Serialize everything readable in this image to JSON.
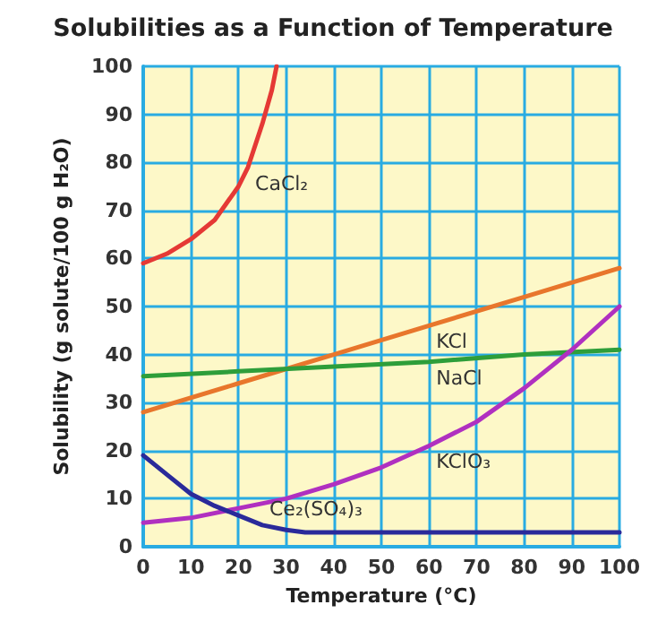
{
  "chart_data": {
    "type": "line",
    "title": "Solubilities as a Function of Temperature",
    "xlabel": "Temperature (°C)",
    "ylabel": "Solubility (g solute/100 g H₂O)",
    "xlim": [
      0,
      100
    ],
    "xticks": [
      0,
      10,
      20,
      30,
      40,
      50,
      60,
      70,
      80,
      90,
      100
    ],
    "ylim": [
      0,
      100
    ],
    "yticks": [
      0,
      10,
      20,
      30,
      40,
      50,
      60,
      70,
      80,
      90,
      100
    ],
    "grid": true,
    "marker": "none",
    "line_style": "solid",
    "series": [
      {
        "name": "CaCl₂",
        "color": "#e53935",
        "x": [
          0,
          5,
          10,
          15,
          20,
          22,
          25,
          27,
          28
        ],
        "values": [
          59,
          61,
          64,
          68,
          75,
          79,
          88,
          95,
          100
        ]
      },
      {
        "name": "KCl",
        "color": "#e8762c",
        "x": [
          0,
          20,
          40,
          60,
          80,
          100
        ],
        "values": [
          28,
          34,
          40,
          46,
          52,
          58
        ]
      },
      {
        "name": "NaCl",
        "color": "#2e9e3a",
        "x": [
          0,
          20,
          40,
          60,
          80,
          100
        ],
        "values": [
          35.5,
          36.5,
          37.5,
          38.5,
          40,
          41
        ]
      },
      {
        "name": "KClO₃",
        "color": "#b030c0",
        "x": [
          0,
          10,
          20,
          30,
          40,
          50,
          60,
          70,
          80,
          90,
          100
        ],
        "values": [
          5,
          6,
          8,
          10,
          13,
          16.5,
          21,
          26,
          33,
          41,
          50
        ]
      },
      {
        "name": "Ce₂(SO₄)₃",
        "color": "#2a2a9a",
        "x": [
          0,
          5,
          10,
          15,
          20,
          25,
          30,
          34,
          40,
          100
        ],
        "values": [
          19,
          15,
          11,
          8.5,
          6.5,
          4.5,
          3.5,
          3,
          3,
          3
        ]
      }
    ]
  }
}
